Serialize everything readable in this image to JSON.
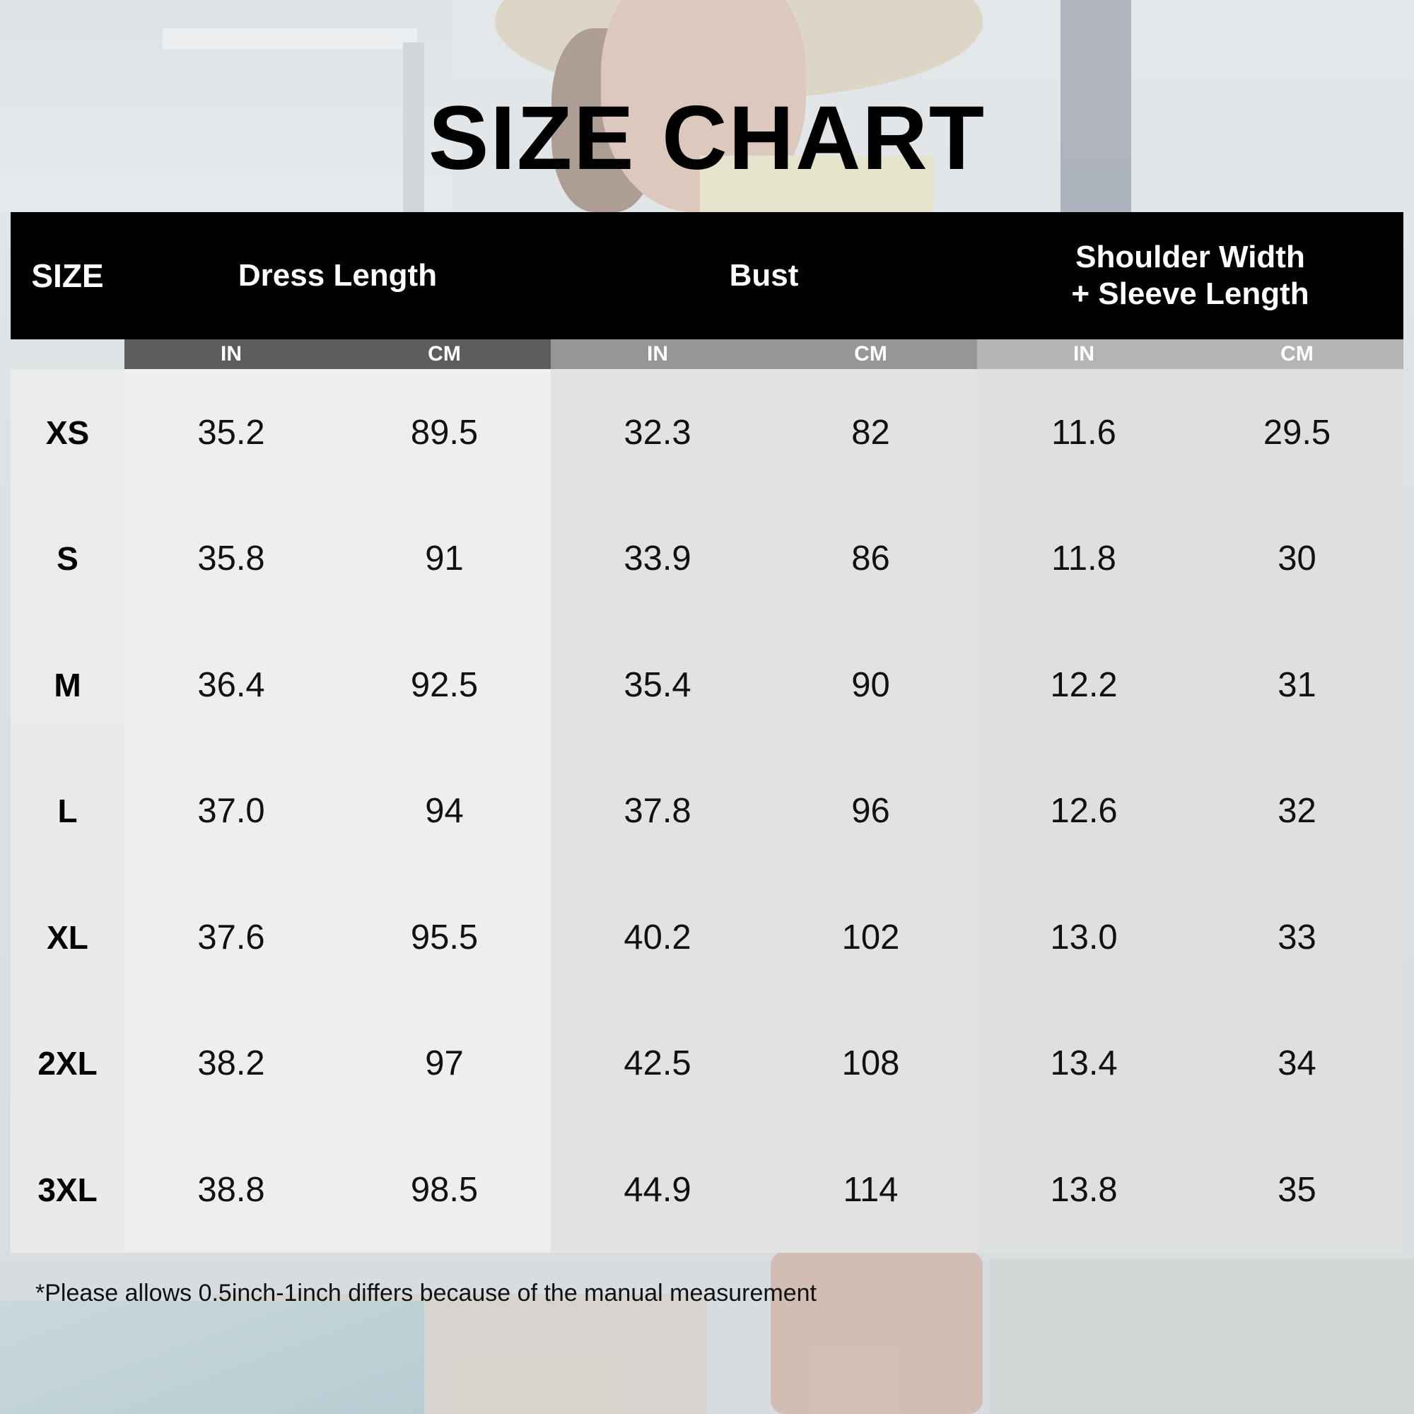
{
  "title": "SIZE CHART",
  "header": {
    "size": "SIZE",
    "dress_length": "Dress Length",
    "bust": "Bust",
    "shoulder_line1": "Shoulder Width",
    "shoulder_line2": "+ Sleeve Length"
  },
  "units": [
    "IN",
    "CM",
    "IN",
    "CM",
    "IN",
    "CM"
  ],
  "rows": [
    {
      "size": "XS",
      "dress_in": "35.2",
      "dress_cm": "89.5",
      "bust_in": "32.3",
      "bust_cm": "82",
      "sw_in": "11.6",
      "sw_cm": "29.5"
    },
    {
      "size": "S",
      "dress_in": "35.8",
      "dress_cm": "91",
      "bust_in": "33.9",
      "bust_cm": "86",
      "sw_in": "11.8",
      "sw_cm": "30"
    },
    {
      "size": "M",
      "dress_in": "36.4",
      "dress_cm": "92.5",
      "bust_in": "35.4",
      "bust_cm": "90",
      "sw_in": "12.2",
      "sw_cm": "31"
    },
    {
      "size": "L",
      "dress_in": "37.0",
      "dress_cm": "94",
      "bust_in": "37.8",
      "bust_cm": "96",
      "sw_in": "12.6",
      "sw_cm": "32"
    },
    {
      "size": "XL",
      "dress_in": "37.6",
      "dress_cm": "95.5",
      "bust_in": "40.2",
      "bust_cm": "102",
      "sw_in": "13.0",
      "sw_cm": "33"
    },
    {
      "size": "2XL",
      "dress_in": "38.2",
      "dress_cm": "97",
      "bust_in": "42.5",
      "bust_cm": "108",
      "sw_in": "13.4",
      "sw_cm": "34"
    },
    {
      "size": "3XL",
      "dress_in": "38.8",
      "dress_cm": "98.5",
      "bust_in": "44.9",
      "bust_cm": "114",
      "sw_in": "13.8",
      "sw_cm": "35"
    }
  ],
  "note": "*Please allows 0.5inch-1inch differs because of the manual measurement",
  "colors": {
    "header_bg": "#000000",
    "unit_dress_bg": "#5d5d5d",
    "unit_bust_bg": "#969696",
    "unit_shoulder_bg": "#b4b4b4"
  }
}
